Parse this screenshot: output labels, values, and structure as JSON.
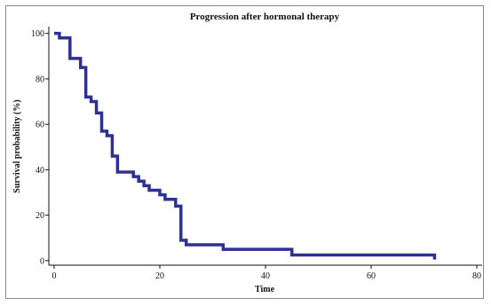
{
  "chart_data": {
    "type": "line",
    "step": true,
    "title": "Progression after hormonal therapy",
    "xlabel": "Time",
    "ylabel": "Survival probability (%)",
    "xlim": [
      -1,
      81
    ],
    "ylim": [
      -2,
      103
    ],
    "x_ticks": [
      0,
      20,
      40,
      60,
      80
    ],
    "y_ticks": [
      0,
      20,
      40,
      60,
      80,
      100
    ],
    "grid": false,
    "legend": "none",
    "series": [
      {
        "color": "#2e3192",
        "x": [
          0,
          1,
          3,
          5,
          6,
          7,
          8,
          9,
          10,
          11,
          12,
          15,
          16,
          17,
          18,
          20,
          21,
          23,
          24,
          25,
          32,
          45,
          72
        ],
        "y": [
          100,
          98,
          89,
          85,
          72,
          70,
          65,
          57,
          55,
          46,
          39,
          37,
          35,
          33,
          31,
          29,
          27,
          24,
          9,
          7,
          5,
          2.5,
          0.5
        ]
      }
    ]
  }
}
